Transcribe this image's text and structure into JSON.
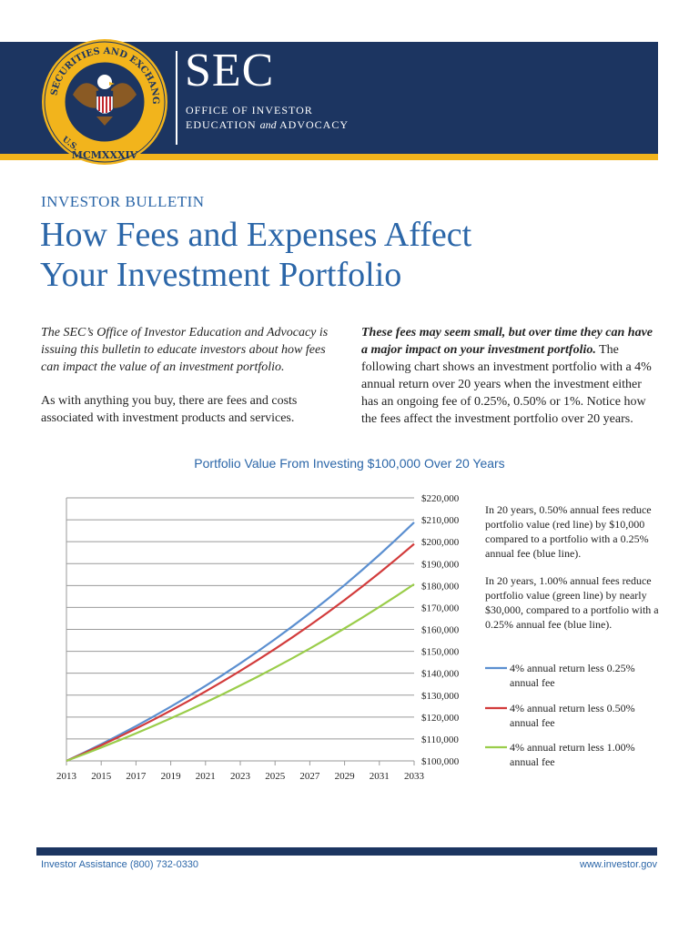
{
  "header": {
    "seal_text_top": "SECURITIES AND EXCHANGE COMMISSION",
    "seal_left": "U.S.",
    "seal_year": "MCMXXXIV",
    "agency": "SEC",
    "office_line1": "Office of Investor",
    "office_line2_a": "Education",
    "office_line2_and": "and",
    "office_line2_b": "Advocacy",
    "colors": {
      "navy": "#1c3561",
      "gold": "#f2b41c"
    }
  },
  "bulletin_label": "INVESTOR BULLETIN",
  "title_line1": "How Fees and Expenses Affect",
  "title_line2": "Your Investment Portfolio",
  "left_col": {
    "para1": "The SEC’s Office of Investor Education and Advocacy is issuing this bulletin to educate investors about how fees can impact the value of an investment portfolio.",
    "para2": "As with anything you buy, there are fees and costs associated with investment products and services."
  },
  "right_col": {
    "lead": "These fees may seem small, but over time they can have a major impact on your investment portfolio.",
    "rest": " The following chart shows an investment portfolio with a 4% annual return over 20 years when the investment either has an ongoing fee of 0.25%, 0.50% or 1%. Notice how the fees affect the investment portfolio over 20 years."
  },
  "chart_data": {
    "type": "line",
    "title": "Portfolio Value From Investing $100,000 Over 20 Years",
    "x_ticks": [
      "2013",
      "2015",
      "2017",
      "2019",
      "2021",
      "2023",
      "2025",
      "2027",
      "2029",
      "2031",
      "2033"
    ],
    "y_ticks": [
      "$100,000",
      "$110,000",
      "$120,000",
      "$130,000",
      "$140,000",
      "$150,000",
      "$160,000",
      "$170,000",
      "$180,000",
      "$190,000",
      "$200,000",
      "$210,000",
      "$220,000"
    ],
    "xlim": [
      2013,
      2033
    ],
    "ylim": [
      100000,
      220000
    ],
    "grid": true,
    "x": [
      2013,
      2014,
      2015,
      2016,
      2017,
      2018,
      2019,
      2020,
      2021,
      2022,
      2023,
      2024,
      2025,
      2026,
      2027,
      2028,
      2029,
      2030,
      2031,
      2032,
      2033
    ],
    "series": [
      {
        "name": "4% annual return less 0.25% annual fee",
        "color": "#5b8fd0",
        "values": [
          100000,
          103750,
          107641,
          111677,
          115865,
          120210,
          124718,
          129395,
          134247,
          139281,
          144504,
          149923,
          155545,
          161378,
          167430,
          173709,
          180223,
          186981,
          193993,
          201268,
          208815
        ]
      },
      {
        "name": "4% annual return less 0.50% annual fee",
        "color": "#d23b3b",
        "values": [
          100000,
          103500,
          107123,
          110872,
          114752,
          118769,
          122926,
          127228,
          131681,
          136290,
          141060,
          145997,
          151107,
          156396,
          161870,
          167535,
          173399,
          179468,
          185749,
          192250,
          198979
        ]
      },
      {
        "name": "4% annual return less 1.00% annual fee",
        "color": "#9acd4a",
        "values": [
          100000,
          103000,
          106090,
          109273,
          112551,
          115927,
          119405,
          122987,
          126677,
          130477,
          134392,
          138423,
          142576,
          146853,
          151259,
          155797,
          160471,
          165285,
          170243,
          175351,
          180611
        ]
      }
    ],
    "annotations": [
      "In 20 years, 0.50% annual fees reduce portfolio value (red line) by $10,000 compared to a portfolio with a 0.25% annual fee (blue line).",
      "In 20 years, 1.00% annual fees reduce portfolio value (green line) by nearly $30,000, compared to a portfolio with a 0.25% annual fee (blue line)."
    ],
    "legend_position": "right"
  },
  "footer": {
    "left": "Investor Assistance (800) 732-0330",
    "right": "www.investor.gov"
  }
}
